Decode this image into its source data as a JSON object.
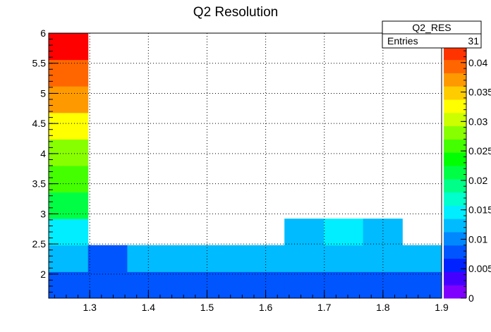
{
  "chart_data": {
    "type": "heatmap",
    "title": "Q2 Resolution",
    "xlabel": "",
    "ylabel": "",
    "xlim": [
      1.23,
      1.9
    ],
    "ylim": [
      1.6,
      6.0
    ],
    "x_ticks": [
      "1.3",
      "1.4",
      "1.5",
      "1.6",
      "1.7",
      "1.8",
      "1.9"
    ],
    "y_ticks": [
      "2",
      "2.5",
      "3",
      "3.5",
      "4",
      "4.5",
      "5",
      "5.5",
      "6"
    ],
    "grid": true,
    "z_range": [
      0,
      0.045
    ],
    "colorbar_ticks": [
      "0",
      "0.005",
      "0.01",
      "0.015",
      "0.02",
      "0.025",
      "0.03",
      "0.035",
      "0.04"
    ],
    "stats_box": {
      "title": "Q2_RES",
      "rows": [
        {
          "label": "Entries",
          "value": "31"
        }
      ]
    },
    "palette": [
      "#7F00FF",
      "#4400FF",
      "#0022FF",
      "#0055FF",
      "#0088FF",
      "#00BBFF",
      "#00EEFF",
      "#00FFCC",
      "#00FF88",
      "#00FF44",
      "#00FF00",
      "#44FF00",
      "#88FF00",
      "#CCFF00",
      "#FFFF00",
      "#FFCC00",
      "#FF9900",
      "#FF6600",
      "#FF3300",
      "#FF0000"
    ],
    "cells": [
      {
        "x0": 1.23,
        "x1": 1.297,
        "y0": 1.6,
        "y1": 2.04,
        "z": 0.007
      },
      {
        "x0": 1.23,
        "x1": 1.297,
        "y0": 2.04,
        "y1": 2.48,
        "z": 0.0115
      },
      {
        "x0": 1.23,
        "x1": 1.297,
        "y0": 2.48,
        "y1": 2.92,
        "z": 0.0155
      },
      {
        "x0": 1.23,
        "x1": 1.297,
        "y0": 2.92,
        "y1": 3.36,
        "z": 0.0215
      },
      {
        "x0": 1.23,
        "x1": 1.297,
        "y0": 3.36,
        "y1": 3.8,
        "z": 0.025
      },
      {
        "x0": 1.23,
        "x1": 1.297,
        "y0": 3.8,
        "y1": 4.24,
        "z": 0.029
      },
      {
        "x0": 1.23,
        "x1": 1.297,
        "y0": 4.24,
        "y1": 4.68,
        "z": 0.0325
      },
      {
        "x0": 1.23,
        "x1": 1.297,
        "y0": 4.68,
        "y1": 5.12,
        "z": 0.0365
      },
      {
        "x0": 1.23,
        "x1": 1.297,
        "y0": 5.12,
        "y1": 5.56,
        "z": 0.0395
      },
      {
        "x0": 1.23,
        "x1": 1.297,
        "y0": 5.56,
        "y1": 6.0,
        "z": 0.0445
      },
      {
        "x0": 1.297,
        "x1": 1.364,
        "y0": 1.6,
        "y1": 2.04,
        "z": 0.0085
      },
      {
        "x0": 1.297,
        "x1": 1.364,
        "y0": 2.04,
        "y1": 2.48,
        "z": 0.0085
      },
      {
        "x0": 1.364,
        "x1": 1.431,
        "y0": 1.6,
        "y1": 2.04,
        "z": 0.0085
      },
      {
        "x0": 1.364,
        "x1": 1.431,
        "y0": 2.04,
        "y1": 2.48,
        "z": 0.0115
      },
      {
        "x0": 1.431,
        "x1": 1.498,
        "y0": 1.6,
        "y1": 2.04,
        "z": 0.0085
      },
      {
        "x0": 1.431,
        "x1": 1.498,
        "y0": 2.04,
        "y1": 2.48,
        "z": 0.0115
      },
      {
        "x0": 1.498,
        "x1": 1.565,
        "y0": 1.6,
        "y1": 2.04,
        "z": 0.0085
      },
      {
        "x0": 1.498,
        "x1": 1.565,
        "y0": 2.04,
        "y1": 2.48,
        "z": 0.0115
      },
      {
        "x0": 1.565,
        "x1": 1.632,
        "y0": 1.6,
        "y1": 2.04,
        "z": 0.0085
      },
      {
        "x0": 1.565,
        "x1": 1.632,
        "y0": 2.04,
        "y1": 2.48,
        "z": 0.0115
      },
      {
        "x0": 1.632,
        "x1": 1.699,
        "y0": 1.6,
        "y1": 2.04,
        "z": 0.0085
      },
      {
        "x0": 1.632,
        "x1": 1.699,
        "y0": 2.04,
        "y1": 2.48,
        "z": 0.0115
      },
      {
        "x0": 1.632,
        "x1": 1.699,
        "y0": 2.48,
        "y1": 2.92,
        "z": 0.0115
      },
      {
        "x0": 1.699,
        "x1": 1.766,
        "y0": 1.6,
        "y1": 2.04,
        "z": 0.0085
      },
      {
        "x0": 1.699,
        "x1": 1.766,
        "y0": 2.04,
        "y1": 2.48,
        "z": 0.0115
      },
      {
        "x0": 1.699,
        "x1": 1.766,
        "y0": 2.48,
        "y1": 2.92,
        "z": 0.0155
      },
      {
        "x0": 1.766,
        "x1": 1.833,
        "y0": 1.6,
        "y1": 2.04,
        "z": 0.0085
      },
      {
        "x0": 1.766,
        "x1": 1.833,
        "y0": 2.04,
        "y1": 2.48,
        "z": 0.0115
      },
      {
        "x0": 1.766,
        "x1": 1.833,
        "y0": 2.48,
        "y1": 2.92,
        "z": 0.0115
      },
      {
        "x0": 1.833,
        "x1": 1.9,
        "y0": 1.6,
        "y1": 2.04,
        "z": 0.0085
      },
      {
        "x0": 1.833,
        "x1": 1.9,
        "y0": 2.04,
        "y1": 2.48,
        "z": 0.0115
      }
    ]
  }
}
